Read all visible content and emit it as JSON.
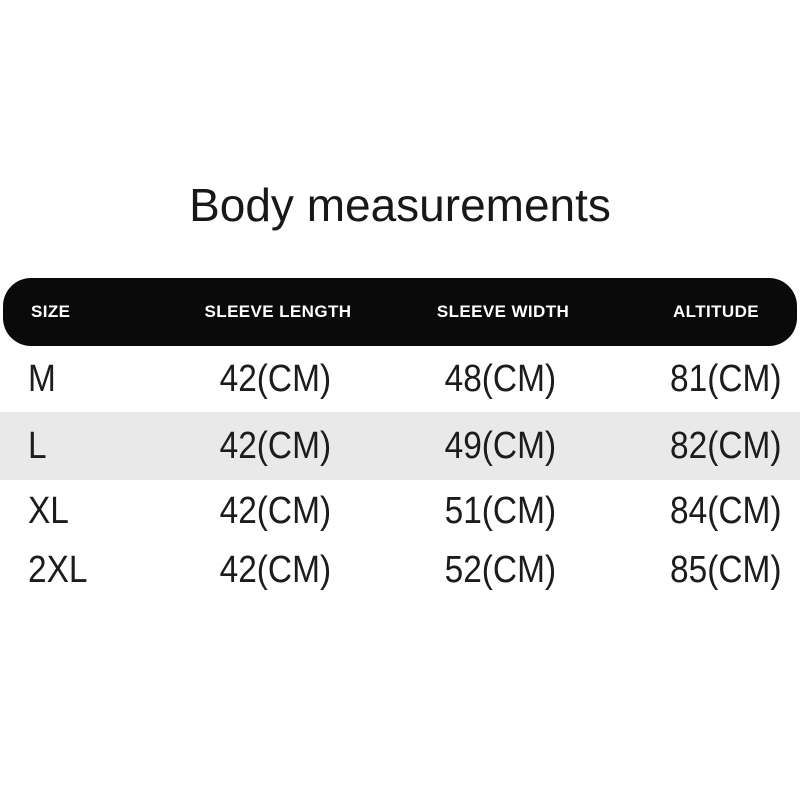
{
  "page": {
    "title": "Body measurements"
  },
  "theme": {
    "background": "#ffffff",
    "header_bg": "#0a0a0a",
    "header_text": "#ffffff",
    "row_text": "#1c1c1c",
    "highlight_row_bg": "#e9e9e9",
    "title_color": "#181818"
  },
  "table": {
    "columns": [
      "SIZE",
      "SLEEVE LENGTH",
      "SLEEVE WIDTH",
      "ALTITUDE"
    ],
    "rows": [
      {
        "size": "M",
        "sleeve_length": "42(CM)",
        "sleeve_width": "48(CM)",
        "altitude": "81(CM)",
        "highlighted": false
      },
      {
        "size": "L",
        "sleeve_length": "42(CM)",
        "sleeve_width": "49(CM)",
        "altitude": "82(CM)",
        "highlighted": true
      },
      {
        "size": "XL",
        "sleeve_length": "42(CM)",
        "sleeve_width": "51(CM)",
        "altitude": "84(CM)",
        "highlighted": false
      },
      {
        "size": "2XL",
        "sleeve_length": "42(CM)",
        "sleeve_width": "52(CM)",
        "altitude": "85(CM)",
        "highlighted": false
      }
    ]
  }
}
